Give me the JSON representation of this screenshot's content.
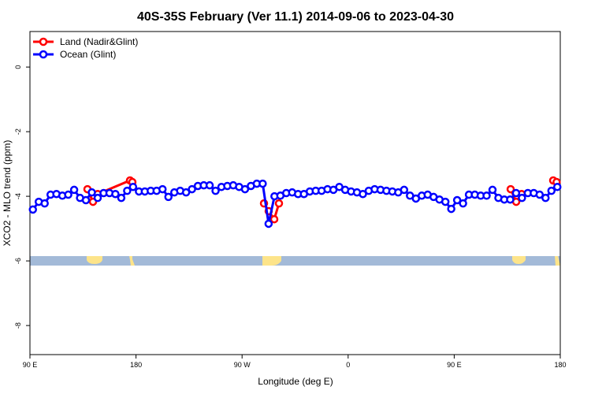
{
  "chart_data": {
    "type": "line",
    "title": "40S-35S February (Ver 11.1)   2014-09-06 to 2023-04-30",
    "x_label": "Longitude (deg E)",
    "y_label": "XCO2 - MLO trend (ppm)",
    "xlim": [
      90,
      540
    ],
    "ylim": [
      -8.9,
      1.1
    ],
    "xticks": [
      {
        "value": 90,
        "label": "90 E"
      },
      180,
      {
        "value": 270,
        "label": "90 W"
      },
      {
        "value": 360,
        "label": "0"
      },
      {
        "value": 450,
        "label": "90 E"
      },
      {
        "value": 540,
        "label": "180"
      }
    ],
    "yticks": [
      0,
      -2,
      -4,
      -6,
      -8
    ],
    "legend": "top-left",
    "series": [
      {
        "name": "Land (Nadir&Glint)",
        "color": "#ff0000",
        "x": [
          138.8,
          143.5,
          147.5,
          174.9,
          176.9,
          null,
          288.6,
          292.6,
          297.3,
          301.3,
          null,
          497.9,
          502.6,
          507.2,
          null,
          534,
          536.9
        ],
        "values": [
          -3.78,
          -4.17,
          -3.93,
          -3.51,
          -3.56,
          null,
          -4.22,
          -4.46,
          -4.71,
          -4.22,
          null,
          -3.78,
          -4.17,
          -3.93,
          null,
          -3.51,
          -3.56
        ]
      },
      {
        "name": "Ocean (Glint)",
        "color": "#0000ff",
        "x": [
          92.5,
          97.5,
          102.5,
          107.5,
          112.5,
          117.5,
          122.5,
          127.5,
          132.5,
          137.5,
          142.5,
          147.5,
          152.5,
          157.5,
          162.5,
          167.5,
          172.5,
          177.5,
          182.5,
          187.5,
          192.5,
          197.5,
          202.5,
          207.5,
          212.5,
          217.5,
          222.5,
          227.5,
          232.5,
          237.5,
          242.5,
          247.5,
          252.5,
          257.5,
          262.5,
          267.5,
          272.5,
          277.5,
          282.5,
          287.5,
          292.5,
          297.5,
          302.5,
          307.5,
          312.5,
          317.5,
          322.5,
          327.5,
          332.5,
          337.5,
          342.5,
          347.5,
          352.5,
          357.5,
          362.5,
          367.5,
          372.5,
          377.5,
          382.5,
          387.5,
          392.5,
          397.5,
          402.5,
          407.5,
          412.5,
          417.5,
          422.5,
          427.5,
          432.5,
          437.5,
          442.5,
          447.5,
          452.5,
          457.5,
          462.5,
          467.5,
          472.5,
          477.5,
          482.5,
          487.5,
          492.5,
          497.5,
          502.5,
          507.5,
          512.5,
          517.5,
          522.5,
          527.5,
          532.5,
          537.5
        ],
        "values": [
          -4.41,
          -4.17,
          -4.22,
          -3.95,
          -3.93,
          -3.98,
          -3.95,
          -3.8,
          -4.05,
          -4.12,
          -3.88,
          -4.05,
          -3.9,
          -3.9,
          -3.93,
          -4.05,
          -3.83,
          -3.71,
          -3.85,
          -3.85,
          -3.83,
          -3.83,
          -3.78,
          -4.02,
          -3.88,
          -3.83,
          -3.88,
          -3.78,
          -3.68,
          -3.66,
          -3.66,
          -3.83,
          -3.71,
          -3.68,
          -3.66,
          -3.71,
          -3.78,
          -3.68,
          -3.61,
          -3.61,
          -4.85,
          -4.0,
          -3.98,
          -3.9,
          -3.88,
          -3.93,
          -3.93,
          -3.85,
          -3.83,
          -3.83,
          -3.78,
          -3.8,
          -3.71,
          -3.8,
          -3.85,
          -3.88,
          -3.93,
          -3.83,
          -3.78,
          -3.8,
          -3.83,
          -3.85,
          -3.88,
          -3.8,
          -3.98,
          -4.07,
          -3.98,
          -3.95,
          -4.02,
          -4.1,
          -4.17,
          -4.39,
          -4.12,
          -4.22,
          -3.95,
          -3.95,
          -3.98,
          -3.98,
          -3.8,
          -4.05,
          -4.1,
          -4.1,
          -3.9,
          -4.05,
          -3.9,
          -3.9,
          -3.95,
          -4.05,
          -3.83,
          -3.71
        ]
      }
    ]
  }
}
